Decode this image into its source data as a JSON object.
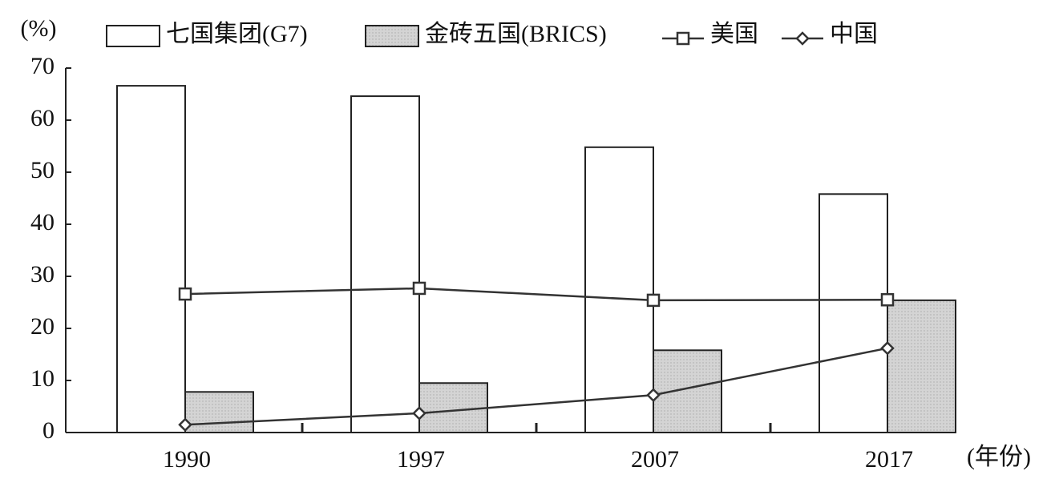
{
  "chart_data": {
    "type": "bar",
    "y_label": "(%)",
    "x_label": "(年份)",
    "categories": [
      "1990",
      "1997",
      "2007",
      "2017"
    ],
    "series": [
      {
        "name": "七国集团(G7)",
        "type": "bar",
        "color": "#ffffff",
        "values": [
          66.6,
          64.6,
          54.8,
          45.8
        ]
      },
      {
        "name": "金砖五国(BRICS)",
        "type": "bar",
        "color": "#cfcfcf",
        "values": [
          7.8,
          9.5,
          15.8,
          25.4
        ]
      },
      {
        "name": "美国",
        "type": "line",
        "marker": "square",
        "color": "#333333",
        "values": [
          26.6,
          27.7,
          25.4,
          25.5
        ]
      },
      {
        "name": "中国",
        "type": "line",
        "marker": "diamond",
        "color": "#333333",
        "values": [
          1.5,
          3.7,
          7.2,
          16.2
        ]
      }
    ],
    "ylim": [
      0,
      70
    ],
    "yticks": [
      0,
      10,
      20,
      30,
      40,
      50,
      60,
      70
    ]
  }
}
